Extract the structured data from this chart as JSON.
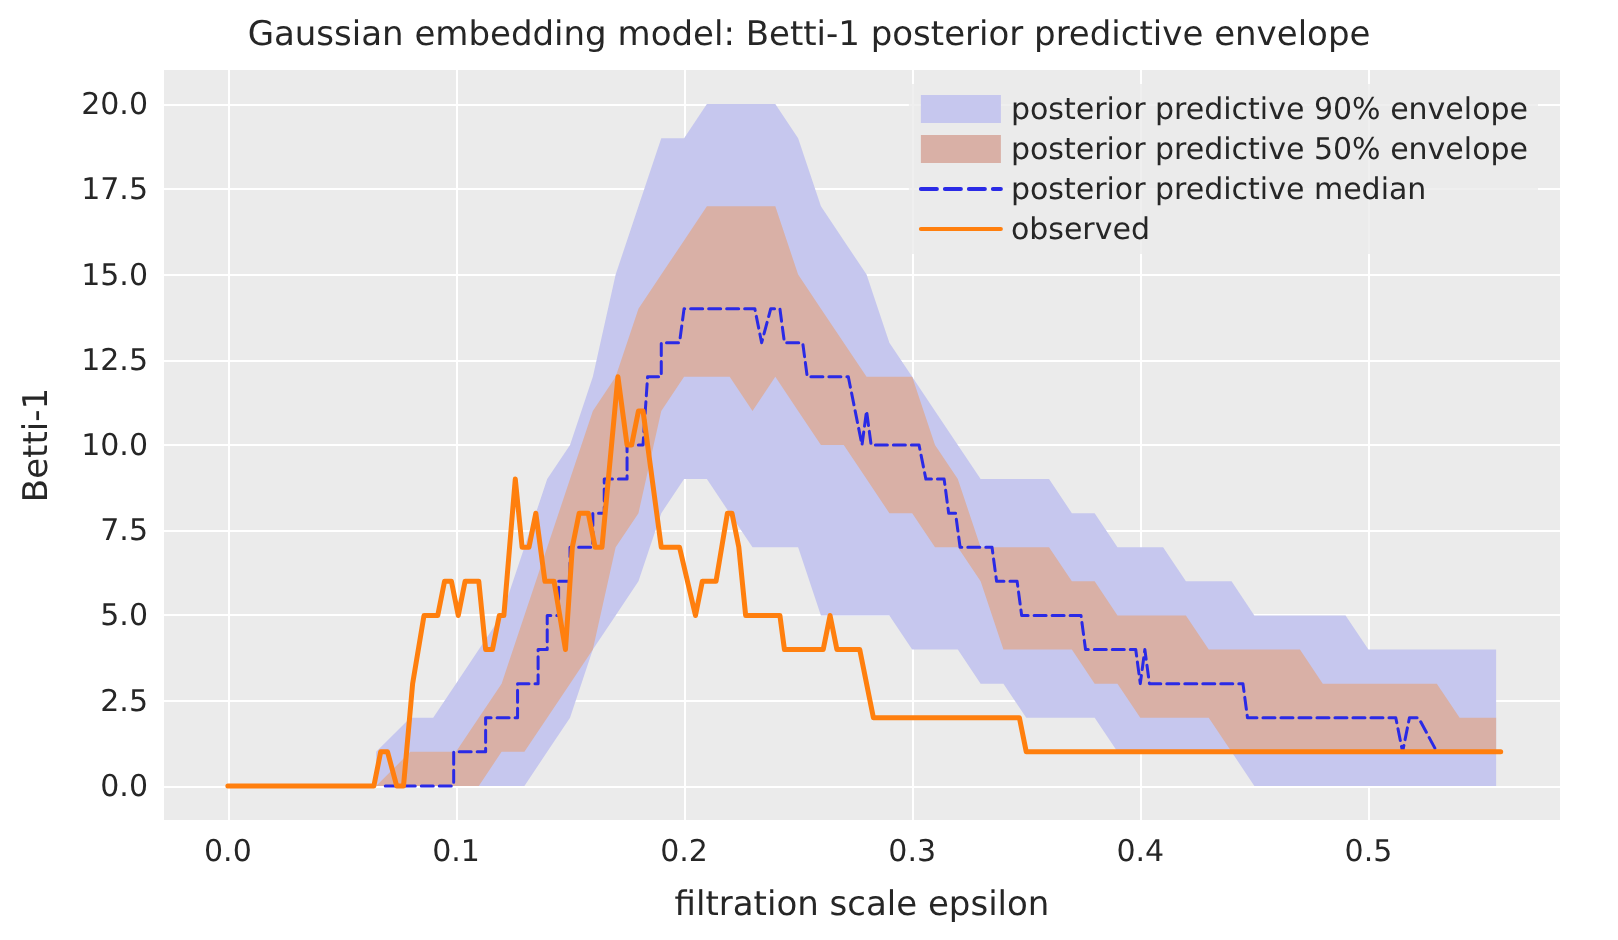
{
  "chart_data": {
    "type": "line",
    "title": "Gaussian embedding model: Betti-1 posterior predictive envelope",
    "xlabel": "filtration scale epsilon",
    "ylabel": "Betti-1",
    "xlim": [
      -0.028,
      0.584
    ],
    "ylim": [
      -1,
      21
    ],
    "xticks": [
      {
        "value": 0,
        "label": "0.0"
      },
      {
        "value": 0.1,
        "label": "0.1"
      },
      {
        "value": 0.2,
        "label": "0.2"
      },
      {
        "value": 0.3,
        "label": "0.3"
      },
      {
        "value": 0.4,
        "label": "0.4"
      },
      {
        "value": 0.5,
        "label": "0.5"
      }
    ],
    "yticks": [
      {
        "value": 0,
        "label": "0.0"
      },
      {
        "value": 2.5,
        "label": "2.5"
      },
      {
        "value": 5,
        "label": "5.0"
      },
      {
        "value": 7.5,
        "label": "7.5"
      },
      {
        "value": 10,
        "label": "10.0"
      },
      {
        "value": 12.5,
        "label": "12.5"
      },
      {
        "value": 15,
        "label": "15.0"
      },
      {
        "value": 17.5,
        "label": "17.5"
      },
      {
        "value": 20,
        "label": "20.0"
      }
    ],
    "grid": true,
    "legend": "top right",
    "marker": "none",
    "series": [
      {
        "name": "posterior predictive 90% envelope",
        "type": "area",
        "color": "#c6c7ee",
        "x": [
          0.065,
          0.08,
          0.09,
          0.1,
          0.11,
          0.12,
          0.13,
          0.14,
          0.15,
          0.16,
          0.17,
          0.18,
          0.19,
          0.2,
          0.21,
          0.22,
          0.23,
          0.24,
          0.25,
          0.26,
          0.27,
          0.28,
          0.29,
          0.3,
          0.31,
          0.32,
          0.33,
          0.34,
          0.35,
          0.36,
          0.37,
          0.38,
          0.39,
          0.4,
          0.41,
          0.42,
          0.43,
          0.44,
          0.45,
          0.46,
          0.47,
          0.48,
          0.49,
          0.5,
          0.51,
          0.52,
          0.53,
          0.54,
          0.556
        ],
        "values": [
          null,
          null,
          null,
          null,
          null,
          null,
          null,
          null,
          null,
          null,
          null,
          null,
          null,
          null,
          null,
          null,
          null,
          null,
          null,
          null,
          null,
          null,
          null,
          null,
          null,
          null,
          null,
          null,
          null,
          null,
          null,
          null,
          null,
          null,
          null,
          null,
          null,
          null,
          null,
          null,
          null,
          null,
          null,
          null,
          null,
          null,
          null,
          null,
          null
        ],
        "lower": [
          0,
          0,
          0,
          0,
          0,
          0,
          0,
          1,
          2,
          4,
          5,
          6,
          8,
          9,
          9,
          8,
          7,
          7,
          7,
          5,
          5,
          5,
          5,
          4,
          4,
          4,
          3,
          3,
          2,
          2,
          2,
          2,
          1,
          1,
          1,
          1,
          1,
          1,
          0,
          0,
          0,
          0,
          0,
          0,
          0,
          0,
          0,
          0,
          0
        ],
        "upper": [
          1,
          2,
          2,
          3,
          4,
          5,
          7,
          9,
          10,
          12,
          15,
          17,
          19,
          19,
          20,
          20,
          20,
          20,
          19,
          17,
          16,
          15,
          13,
          12,
          11,
          10,
          9,
          9,
          9,
          9,
          8,
          8,
          7,
          7,
          7,
          6,
          6,
          6,
          5,
          5,
          5,
          5,
          5,
          4,
          4,
          4,
          4,
          4,
          4
        ]
      },
      {
        "name": "posterior predictive 50% envelope",
        "type": "area",
        "color": "#d9b0a6",
        "x": [
          0.065,
          0.08,
          0.09,
          0.1,
          0.11,
          0.12,
          0.13,
          0.14,
          0.15,
          0.16,
          0.17,
          0.18,
          0.19,
          0.2,
          0.21,
          0.22,
          0.23,
          0.24,
          0.25,
          0.26,
          0.27,
          0.28,
          0.29,
          0.3,
          0.31,
          0.32,
          0.33,
          0.34,
          0.35,
          0.36,
          0.37,
          0.38,
          0.39,
          0.4,
          0.41,
          0.42,
          0.43,
          0.44,
          0.45,
          0.46,
          0.47,
          0.48,
          0.49,
          0.5,
          0.51,
          0.52,
          0.53,
          0.54,
          0.556
        ],
        "values": [
          null,
          null,
          null,
          null,
          null,
          null,
          null,
          null,
          null,
          null,
          null,
          null,
          null,
          null,
          null,
          null,
          null,
          null,
          null,
          null,
          null,
          null,
          null,
          null,
          null,
          null,
          null,
          null,
          null,
          null,
          null,
          null,
          null,
          null,
          null,
          null,
          null,
          null,
          null,
          null,
          null,
          null,
          null,
          null,
          null,
          null,
          null,
          null,
          null
        ],
        "lower": [
          0,
          0,
          0,
          0,
          0,
          1,
          1,
          2,
          3,
          4,
          7,
          8,
          11,
          12,
          12,
          12,
          11,
          12,
          11,
          10,
          10,
          9,
          8,
          8,
          7,
          7,
          6,
          4,
          4,
          4,
          4,
          3,
          3,
          2,
          2,
          2,
          2,
          1,
          1,
          1,
          1,
          1,
          1,
          1,
          1,
          1,
          1,
          1,
          1
        ],
        "upper": [
          0,
          1,
          1,
          1,
          2,
          3,
          5,
          7,
          9,
          11,
          12,
          14,
          15,
          16,
          17,
          17,
          17,
          17,
          15,
          14,
          13,
          12,
          12,
          12,
          10,
          9,
          7,
          7,
          7,
          7,
          6,
          6,
          5,
          5,
          5,
          5,
          4,
          4,
          4,
          4,
          4,
          3,
          3,
          3,
          3,
          3,
          3,
          2,
          2
        ]
      },
      {
        "name": "posterior predictive median",
        "type": "line",
        "line_style": "dashed",
        "color": "#2a2ae6",
        "x": [
          0.069,
          0.099,
          0.099,
          0.113,
          0.113,
          0.127,
          0.127,
          0.136,
          0.136,
          0.14,
          0.14,
          0.145,
          0.145,
          0.15,
          0.15,
          0.16,
          0.16,
          0.165,
          0.165,
          0.175,
          0.175,
          0.182,
          0.184,
          0.19,
          0.19,
          0.198,
          0.2,
          0.231,
          0.234,
          0.238,
          0.242,
          0.244,
          0.252,
          0.254,
          0.272,
          0.275,
          0.278,
          0.28,
          0.282,
          0.303,
          0.306,
          0.314,
          0.316,
          0.319,
          0.321,
          0.335,
          0.337,
          0.346,
          0.348,
          0.374,
          0.376,
          0.398,
          0.4,
          0.402,
          0.404,
          0.445,
          0.447,
          0.512,
          0.515,
          0.518,
          0.522,
          0.53
        ],
        "values": [
          0,
          0,
          1,
          1,
          2,
          2,
          3,
          3,
          4,
          4,
          5,
          5,
          6,
          6,
          7,
          7,
          8,
          8,
          9,
          9,
          10,
          10,
          12,
          12,
          13,
          13,
          14,
          14,
          13,
          14,
          14,
          13,
          13,
          12,
          12,
          11,
          10,
          11,
          10,
          10,
          9,
          9,
          8,
          8,
          7,
          7,
          6,
          6,
          5,
          5,
          4,
          4,
          3,
          4,
          3,
          3,
          2,
          2,
          1,
          2,
          2,
          1
        ]
      },
      {
        "name": "observed",
        "type": "line",
        "line_style": "solid",
        "color": "#ff7f0e",
        "x": [
          0,
          0.064,
          0.067,
          0.07,
          0.074,
          0.077,
          0.081,
          0.086,
          0.092,
          0.095,
          0.098,
          0.101,
          0.104,
          0.11,
          0.113,
          0.116,
          0.119,
          0.121,
          0.126,
          0.129,
          0.132,
          0.135,
          0.139,
          0.143,
          0.148,
          0.151,
          0.154,
          0.158,
          0.161,
          0.164,
          0.171,
          0.175,
          0.177,
          0.18,
          0.182,
          0.186,
          0.19,
          0.198,
          0.205,
          0.208,
          0.214,
          0.219,
          0.221,
          0.224,
          0.227,
          0.242,
          0.244,
          0.261,
          0.264,
          0.267,
          0.277,
          0.283,
          0.347,
          0.35,
          0.558
        ],
        "values": [
          0,
          0,
          1,
          1,
          0,
          0,
          3,
          5,
          5,
          6,
          6,
          5,
          6,
          6,
          4,
          4,
          5,
          5,
          9,
          7,
          7,
          8,
          6,
          6,
          4,
          7,
          8,
          8,
          7,
          7,
          12,
          10,
          10,
          11,
          11,
          9,
          7,
          7,
          5,
          6,
          6,
          8,
          8,
          7,
          5,
          5,
          4,
          4,
          5,
          4,
          4,
          2,
          2,
          1,
          1
        ]
      }
    ]
  }
}
